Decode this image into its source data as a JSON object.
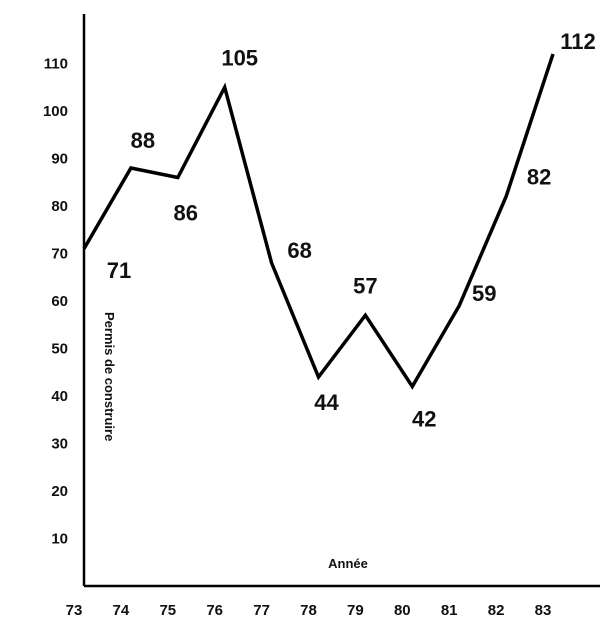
{
  "chart_data": {
    "type": "line",
    "x": [
      "73",
      "74",
      "75",
      "76",
      "77",
      "78",
      "79",
      "80",
      "81",
      "82",
      "83"
    ],
    "series": [
      {
        "values": [
          71,
          88,
          86,
          105,
          68,
          44,
          57,
          42,
          59,
          82,
          112
        ]
      }
    ],
    "data_labels": [
      "71",
      "88",
      "86",
      "105",
      "68",
      "44",
      "57",
      "42",
      "59",
      "82",
      "112"
    ],
    "y_ticks": [
      10,
      20,
      30,
      40,
      50,
      60,
      70,
      80,
      90,
      100,
      110
    ],
    "ylim": [
      0,
      120
    ],
    "xlabel": "Année",
    "ylabel": "Permis de construire",
    "grid": false,
    "colors": {
      "line": "#000000",
      "text": "#111111",
      "background": "#ffffff"
    }
  }
}
